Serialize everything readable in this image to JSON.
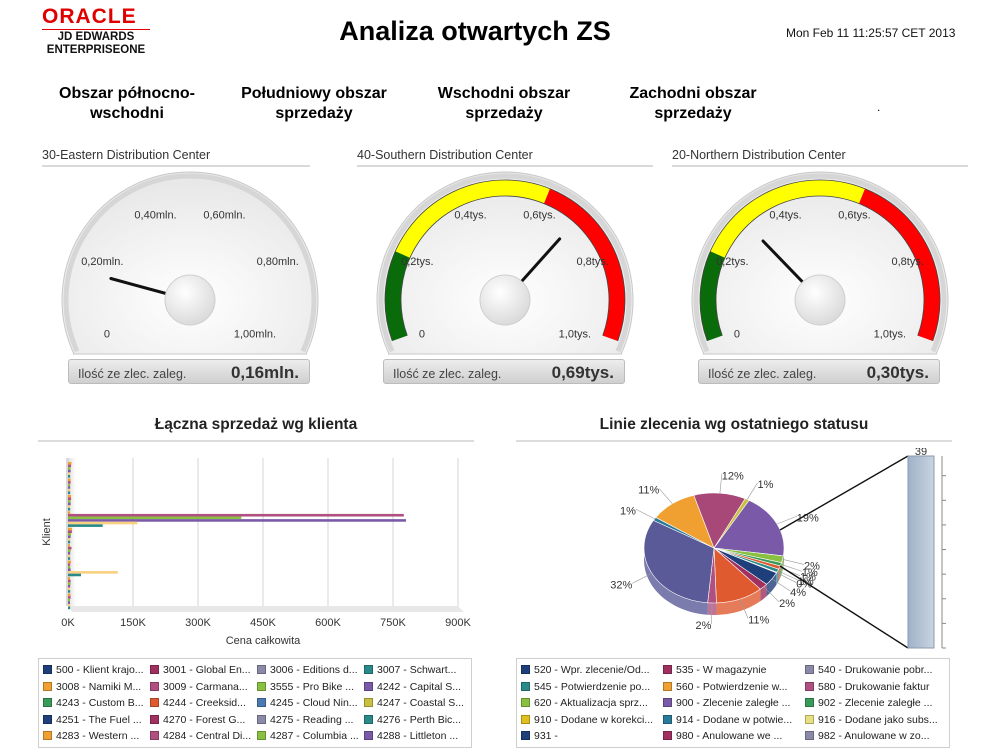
{
  "header": {
    "logo_oracle": "ORACLE",
    "logo_line1": "JD EDWARDS",
    "logo_line2": "ENTERPRISEONE",
    "title": "Analiza otwartych ZS",
    "timestamp": "Mon Feb 11 11:25:57 CET 2013"
  },
  "regions": [
    {
      "line1": "Obszar północno-",
      "line2": "wschodni"
    },
    {
      "line1": "Południowy obszar",
      "line2": "sprzedaży"
    },
    {
      "line1": "Wschodni obszar",
      "line2": "sprzedaży"
    },
    {
      "line1": "Zachodni obszar",
      "line2": "sprzedaży"
    }
  ],
  "trailing_dot": ".",
  "gauges": [
    {
      "title": "30-Eastern Distribution Center",
      "ticks": [
        "0",
        "0,20mln.",
        "0,40mln.",
        "0,60mln.",
        "0,80mln.",
        "1,00mln."
      ],
      "colored": false,
      "value_fraction": 0.16,
      "footer_label": "Ilość ze zlec. zaleg.",
      "footer_value": "0,16mln."
    },
    {
      "title": "40-Southern Distribution Center",
      "ticks": [
        "0",
        "0,2tys.",
        "0,4tys.",
        "0,6tys.",
        "0,8tys.",
        "1,0tys."
      ],
      "colored": true,
      "value_fraction": 0.69,
      "footer_label": "Ilość ze zlec. zaleg.",
      "footer_value": "0,69tys."
    },
    {
      "title": "20-Northern Distribution Center",
      "ticks": [
        "0",
        "0,2tys.",
        "0,4tys.",
        "0,6tys.",
        "0,8tys.",
        "1,0tys."
      ],
      "colored": true,
      "value_fraction": 0.3,
      "footer_label": "Ilość ze zlec. zaleg.",
      "footer_value": "0,30tys."
    }
  ],
  "bar_panel": {
    "title": "Łączna sprzedaż wg klienta",
    "legend": [
      {
        "label": "500 - Klient krajo...",
        "color": "#1f3f7a"
      },
      {
        "label": "3001 - Global En...",
        "color": "#a03060"
      },
      {
        "label": "3006 - Editions d...",
        "color": "#8a8aa8"
      },
      {
        "label": "3007 - Schwart...",
        "color": "#2a8a8a"
      },
      {
        "label": "3008 - Namiki M...",
        "color": "#f0a030"
      },
      {
        "label": "3009 - Carmana...",
        "color": "#b05080"
      },
      {
        "label": "3555 - Pro Bike ...",
        "color": "#8ac040"
      },
      {
        "label": "4242 - Capital S...",
        "color": "#7a5aa8"
      },
      {
        "label": "4243 - Custom B...",
        "color": "#3a9a5a"
      },
      {
        "label": "4244 - Creeksid...",
        "color": "#e05a30"
      },
      {
        "label": "4245 - Cloud Nin...",
        "color": "#4a7ab0"
      },
      {
        "label": "4247 - Coastal S...",
        "color": "#c8c040"
      },
      {
        "label": "4251 - The Fuel ...",
        "color": "#1f3f7a"
      },
      {
        "label": "4270 - Forest G...",
        "color": "#a03060"
      },
      {
        "label": "4275 - Reading ...",
        "color": "#8a8aa8"
      },
      {
        "label": "4276 - Perth Bic...",
        "color": "#2a8a8a"
      },
      {
        "label": "4283 - Western ...",
        "color": "#f0a030"
      },
      {
        "label": "4284 - Central Di...",
        "color": "#b05080"
      },
      {
        "label": "4287 - Columbia ...",
        "color": "#8ac040"
      },
      {
        "label": "4288 - Littleton ...",
        "color": "#7a5aa8"
      }
    ]
  },
  "pie_panel": {
    "title": "Linie zlecenia wg ostatniego statusu",
    "legend": [
      {
        "label": "520 - Wpr. zlecenie/Od...",
        "color": "#1f3f7a"
      },
      {
        "label": "535 - W magazynie",
        "color": "#a03060"
      },
      {
        "label": "540 - Drukowanie pobr...",
        "color": "#8a8aa8"
      },
      {
        "label": "545 - Potwierdzenie po...",
        "color": "#2a8a8a"
      },
      {
        "label": "560 - Potwierdzenie w...",
        "color": "#f0a030"
      },
      {
        "label": "580 - Drukowanie faktur",
        "color": "#b05080"
      },
      {
        "label": "620 - Aktualizacja sprz...",
        "color": "#8ac040"
      },
      {
        "label": "900 - Zlecenie zaległe ...",
        "color": "#7a5aa8"
      },
      {
        "label": "902 - Zlecenie zaległe ...",
        "color": "#3a9a5a"
      },
      {
        "label": "910 - Dodane w korekci...",
        "color": "#e0c020"
      },
      {
        "label": "914 - Dodane w potwie...",
        "color": "#2a7a9a"
      },
      {
        "label": "916 - Dodane jako subs...",
        "color": "#e8e080"
      },
      {
        "label": "931 -",
        "color": "#1f3f7a"
      },
      {
        "label": "980 - Anulowane we ...",
        "color": "#a03060"
      },
      {
        "label": "982 - Anulowane w zo...",
        "color": "#8a8aa8"
      }
    ]
  },
  "chart_data": [
    {
      "type": "bar",
      "orientation": "horizontal",
      "xlabel": "Cena całkowita",
      "ylabel": "Klient",
      "xlim": [
        0,
        900000
      ],
      "x_ticks": [
        "0K",
        "150K",
        "300K",
        "450K",
        "600K",
        "750K",
        "900K"
      ],
      "grid": true,
      "series": [
        {
          "color": "#f0a030",
          "values": [
            8000,
            6000,
            7000,
            5000,
            9000,
            4000,
            7000,
            3000,
            6000
          ]
        },
        {
          "color": "#b05080",
          "values": [
            7000,
            6000,
            7000,
            775000,
            9000,
            8000,
            5000,
            6000,
            6000
          ]
        },
        {
          "color": "#8ac040",
          "values": [
            6000,
            5000,
            6000,
            400000,
            7000,
            6000,
            5000,
            6000,
            4000
          ]
        },
        {
          "color": "#7a5aa8",
          "values": [
            6000,
            5000,
            6000,
            780000,
            6000,
            5000,
            6000,
            5000,
            4000
          ]
        },
        {
          "color": "#f8d080",
          "values": [
            5000,
            5000,
            5000,
            160000,
            5000,
            5000,
            115000,
            5000,
            5000
          ]
        },
        {
          "color": "#2a8a8a",
          "values": [
            5000,
            5000,
            5000,
            80000,
            5000,
            5000,
            30000,
            5000,
            5000
          ]
        }
      ]
    },
    {
      "type": "pie",
      "slice_labels": [
        "19%",
        "2%",
        "1%",
        "1%",
        "1%",
        "0%",
        "4%",
        "2%",
        "11%",
        "2%",
        "32%",
        "1%",
        "11%",
        "12%",
        "1%"
      ],
      "values": [
        19,
        2,
        1,
        1,
        1,
        0,
        4,
        2,
        11,
        2,
        32,
        1,
        11,
        12,
        1
      ],
      "colors": [
        "#7a5aa8",
        "#8ac040",
        "#3a9a5a",
        "#e05a30",
        "#2a8a8a",
        "#8a8aa8",
        "#1f3f7a",
        "#a03060",
        "#e05a30",
        "#b05080",
        "#5a5a98",
        "#2a7a9a",
        "#f0a030",
        "#a84878",
        "#c8c040"
      ],
      "detail_bar": {
        "y_ticks": [
          "0",
          "5",
          "10",
          "15",
          "20",
          "25",
          "30",
          "35"
        ],
        "ylim": [
          0,
          39
        ],
        "value_label": "39",
        "value": 39
      }
    }
  ]
}
